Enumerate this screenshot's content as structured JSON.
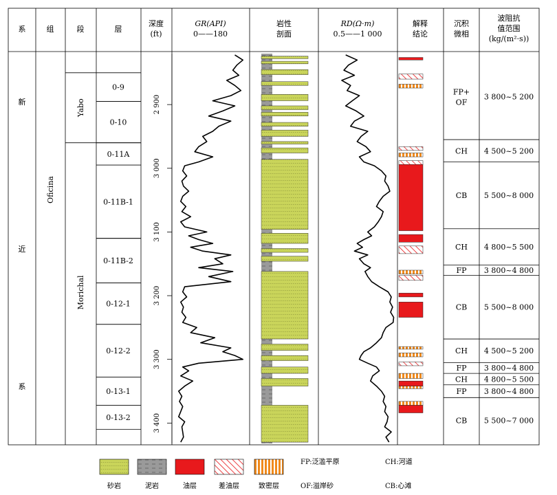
{
  "header": {
    "col_system": "系",
    "col_group": "组",
    "col_section": "段",
    "col_layer": "层",
    "col_depth_1": "深度",
    "col_depth_2": "(ft)",
    "col_gr_1": "GR(API)",
    "col_gr_2": "0——180",
    "col_lith_1": "岩性",
    "col_lith_2": "剖面",
    "col_rd_1": "RD(Ω·m)",
    "col_rd_2": "0.5——1 000",
    "col_interp_1": "解释",
    "col_interp_2": "结论",
    "col_facies_1": "沉积",
    "col_facies_2": "微相",
    "col_imp_1": "波阻抗",
    "col_imp_2": "值范围",
    "col_imp_3": "(kg/(m²·s))"
  },
  "system_chars": [
    "新",
    "近",
    "系"
  ],
  "group": "Oficina",
  "sections": [
    {
      "name": "Yabo",
      "top": 2850,
      "bottom": 2960
    },
    {
      "name": "Morichal",
      "top": 2960,
      "bottom": 3430
    }
  ],
  "layers": [
    {
      "name": "0-9",
      "top": 2850,
      "bottom": 2895
    },
    {
      "name": "0-10",
      "top": 2895,
      "bottom": 2960
    },
    {
      "name": "0-11A",
      "top": 2960,
      "bottom": 2995
    },
    {
      "name": "0-11B-1",
      "top": 2995,
      "bottom": 3110
    },
    {
      "name": "0-11B-2",
      "top": 3110,
      "bottom": 3180
    },
    {
      "name": "0-12-1",
      "top": 3180,
      "bottom": 3245
    },
    {
      "name": "0-12-2",
      "top": 3245,
      "bottom": 3328
    },
    {
      "name": "0-13-1",
      "top": 3328,
      "bottom": 3372
    },
    {
      "name": "0-13-2",
      "top": 3372,
      "bottom": 3410
    }
  ],
  "depth_ticks": [
    "2 900",
    "3 000",
    "3 100",
    "3 200",
    "3 300",
    "3 400"
  ],
  "depth_tick_values": [
    2900,
    3000,
    3100,
    3200,
    3300,
    3400
  ],
  "depth_range": [
    2820,
    3432
  ],
  "chart_data": {
    "type": "line",
    "depth_unit": "ft",
    "series": [
      {
        "name": "GR(API)",
        "range": [
          0,
          180
        ],
        "depth": [
          2822,
          2830,
          2838,
          2846,
          2854,
          2862,
          2870,
          2878,
          2886,
          2894,
          2902,
          2910,
          2918,
          2926,
          2934,
          2942,
          2950,
          2958,
          2966,
          2974,
          2982,
          2990,
          2996,
          3004,
          3012,
          3020,
          3028,
          3036,
          3044,
          3052,
          3060,
          3068,
          3076,
          3084,
          3092,
          3100,
          3106,
          3112,
          3118,
          3124,
          3130,
          3136,
          3142,
          3150,
          3156,
          3162,
          3170,
          3178,
          3186,
          3194,
          3202,
          3210,
          3218,
          3226,
          3234,
          3242,
          3250,
          3258,
          3266,
          3274,
          3282,
          3288,
          3294,
          3300,
          3306,
          3312,
          3318,
          3326,
          3334,
          3342,
          3350,
          3358,
          3366,
          3374,
          3382,
          3390,
          3398,
          3406,
          3414,
          3422,
          3430
        ],
        "values": [
          150,
          170,
          155,
          145,
          160,
          130,
          150,
          165,
          140,
          95,
          150,
          120,
          85,
          140,
          110,
          95,
          70,
          80,
          60,
          50,
          95,
          60,
          25,
          20,
          30,
          18,
          22,
          35,
          20,
          15,
          28,
          18,
          40,
          15,
          25,
          80,
          35,
          60,
          95,
          40,
          70,
          140,
          100,
          120,
          60,
          145,
          85,
          140,
          25,
          20,
          30,
          15,
          22,
          18,
          28,
          20,
          55,
          40,
          100,
          65,
          140,
          120,
          150,
          170,
          60,
          20,
          35,
          15,
          45,
          25,
          10,
          18,
          12,
          20,
          15,
          10,
          25,
          18,
          20,
          22,
          15
        ]
      },
      {
        "name": "RD(Ω·m)",
        "range": [
          0.5,
          1000
        ],
        "depth": [
          2822,
          2830,
          2838,
          2846,
          2854,
          2862,
          2870,
          2878,
          2886,
          2894,
          2902,
          2910,
          2918,
          2926,
          2934,
          2942,
          2950,
          2958,
          2966,
          2974,
          2982,
          2990,
          2996,
          3004,
          3012,
          3020,
          3028,
          3036,
          3044,
          3052,
          3060,
          3068,
          3076,
          3084,
          3092,
          3100,
          3106,
          3112,
          3118,
          3124,
          3130,
          3136,
          3142,
          3150,
          3156,
          3162,
          3170,
          3178,
          3186,
          3194,
          3202,
          3210,
          3218,
          3226,
          3234,
          3242,
          3250,
          3258,
          3266,
          3274,
          3282,
          3288,
          3294,
          3300,
          3306,
          3312,
          3318,
          3326,
          3334,
          3342,
          3350,
          3358,
          3366,
          3374,
          3382,
          3390,
          3398,
          3406,
          3414,
          3422,
          3430
        ],
        "values": [
          6,
          20,
          8,
          5,
          15,
          4,
          10,
          7,
          25,
          12,
          6,
          18,
          40,
          15,
          10,
          60,
          30,
          20,
          50,
          80,
          25,
          40,
          120,
          250,
          400,
          350,
          500,
          600,
          300,
          200,
          150,
          300,
          250,
          180,
          120,
          60,
          90,
          40,
          20,
          35,
          15,
          60,
          25,
          40,
          80,
          45,
          60,
          90,
          200,
          500,
          700,
          600,
          800,
          650,
          900,
          850,
          400,
          300,
          250,
          150,
          80,
          40,
          30,
          25,
          60,
          150,
          200,
          100,
          80,
          150,
          250,
          350,
          300,
          400,
          350,
          500,
          450,
          350,
          700,
          400,
          550
        ]
      }
    ]
  },
  "lithology": {
    "sandstone_intervals": [
      [
        2824,
        2828
      ],
      [
        2832,
        2836
      ],
      [
        2845,
        2853
      ],
      [
        2864,
        2870
      ],
      [
        2884,
        2894
      ],
      [
        2902,
        2908
      ],
      [
        2912,
        2918
      ],
      [
        2928,
        2934
      ],
      [
        2940,
        2950
      ],
      [
        2958,
        2962
      ],
      [
        2968,
        2976
      ],
      [
        2986,
        3096
      ],
      [
        3102,
        3118
      ],
      [
        3126,
        3132
      ],
      [
        3138,
        3146
      ],
      [
        3162,
        3268
      ],
      [
        3276,
        3286
      ],
      [
        3294,
        3302
      ],
      [
        3312,
        3322
      ],
      [
        3330,
        3342
      ],
      [
        3372,
        3430
      ]
    ]
  },
  "interpretation": {
    "oil": [
      [
        2826,
        2830
      ],
      [
        2994,
        3098
      ],
      [
        3104,
        3116
      ],
      [
        3196,
        3202
      ],
      [
        3210,
        3234
      ],
      [
        3334,
        3342
      ],
      [
        3372,
        3384
      ]
    ],
    "poor_oil": [
      [
        2852,
        2860
      ],
      [
        2966,
        2972
      ],
      [
        2988,
        2994
      ],
      [
        3122,
        3134
      ],
      [
        3168,
        3176
      ],
      [
        3304,
        3310
      ]
    ],
    "tight": [
      [
        2868,
        2874
      ],
      [
        2976,
        2982
      ],
      [
        3160,
        3166
      ],
      [
        3280,
        3284
      ],
      [
        3290,
        3296
      ],
      [
        3322,
        3330
      ],
      [
        3342,
        3346
      ],
      [
        3366,
        3372
      ]
    ]
  },
  "facies": [
    {
      "label": "FP+",
      "label2": "OF",
      "top": 2820,
      "bottom": 2955,
      "impedance": "3 800~5 200"
    },
    {
      "label": "CH",
      "top": 2955,
      "bottom": 2990,
      "impedance": "4 500~5 200"
    },
    {
      "label": "CB",
      "top": 2990,
      "bottom": 3095,
      "impedance": "5 500~8 000"
    },
    {
      "label": "CH",
      "top": 3095,
      "bottom": 3152,
      "impedance": "4 800~5 500"
    },
    {
      "label": "FP",
      "top": 3152,
      "bottom": 3168,
      "impedance": "3 800~4 800"
    },
    {
      "label": "CB",
      "top": 3168,
      "bottom": 3268,
      "impedance": "5 500~8 000"
    },
    {
      "label": "CH",
      "top": 3268,
      "bottom": 3305,
      "impedance": "4 500~5 200"
    },
    {
      "label": "FP",
      "top": 3305,
      "bottom": 3322,
      "impedance": "3 800~4 800"
    },
    {
      "label": "CH",
      "top": 3322,
      "bottom": 3340,
      "impedance": "4 800~5 500"
    },
    {
      "label": "FP",
      "top": 3340,
      "bottom": 3360,
      "impedance": "3 800~4 800"
    },
    {
      "label": "CB",
      "top": 3360,
      "bottom": 3432,
      "impedance": "5 500~7 000"
    }
  ],
  "legend": {
    "items": [
      "砂岩",
      "泥岩",
      "油层",
      "差油层",
      "致密层"
    ],
    "colors": {
      "sandstone": "#c9d45a",
      "mudstone": "#9a9a9a",
      "oil": "#e8191c",
      "poor_oil": "#e8191c",
      "tight": "#f08a1c"
    },
    "notes": [
      "FP:泛滥平原",
      "CH:河道",
      "OF:溢岸砂",
      "CB:心滩"
    ]
  }
}
